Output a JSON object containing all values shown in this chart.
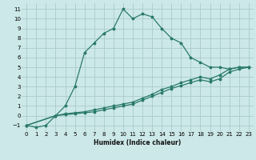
{
  "xlabel": "Humidex (Indice chaleur)",
  "bg_color": "#cce8e8",
  "grid_color": "#aacccc",
  "line_color": "#2a7a6a",
  "xlim": [
    -0.5,
    23.5
  ],
  "ylim": [
    -1.6,
    11.6
  ],
  "xticks": [
    0,
    1,
    2,
    3,
    4,
    5,
    6,
    7,
    8,
    9,
    10,
    11,
    12,
    13,
    14,
    15,
    16,
    17,
    18,
    19,
    20,
    21,
    22,
    23
  ],
  "yticks": [
    -1,
    0,
    1,
    2,
    3,
    4,
    5,
    6,
    7,
    8,
    9,
    10,
    11
  ],
  "series1_x": [
    0,
    1,
    2,
    3,
    4,
    5,
    6,
    7,
    8,
    9,
    10,
    11,
    12,
    13,
    14,
    15,
    16,
    17,
    18,
    19,
    20,
    21,
    22,
    23
  ],
  "series1_y": [
    -1,
    -1.2,
    -1,
    0,
    1,
    3,
    6.5,
    7.5,
    8.5,
    9,
    11,
    10,
    10.5,
    10.2,
    9,
    8,
    7.5,
    6,
    5.5,
    5,
    5,
    4.8,
    5,
    5
  ],
  "series2_x": [
    0,
    3,
    4,
    5,
    6,
    7,
    8,
    9,
    10,
    11,
    12,
    13,
    14,
    15,
    16,
    17,
    18,
    19,
    20,
    21,
    22,
    23
  ],
  "series2_y": [
    -1,
    0,
    0.2,
    0.3,
    0.4,
    0.6,
    0.8,
    1.0,
    1.2,
    1.4,
    1.8,
    2.2,
    2.7,
    3.0,
    3.4,
    3.7,
    4.0,
    3.8,
    4.2,
    4.8,
    5.0,
    5.0
  ],
  "series3_x": [
    0,
    3,
    4,
    5,
    6,
    7,
    8,
    9,
    10,
    11,
    12,
    13,
    14,
    15,
    16,
    17,
    18,
    19,
    20,
    21,
    22,
    23
  ],
  "series3_y": [
    -1,
    0,
    0.1,
    0.2,
    0.3,
    0.4,
    0.6,
    0.8,
    1.0,
    1.2,
    1.6,
    2.0,
    2.4,
    2.8,
    3.1,
    3.4,
    3.7,
    3.5,
    3.8,
    4.5,
    4.8,
    5.0
  ]
}
